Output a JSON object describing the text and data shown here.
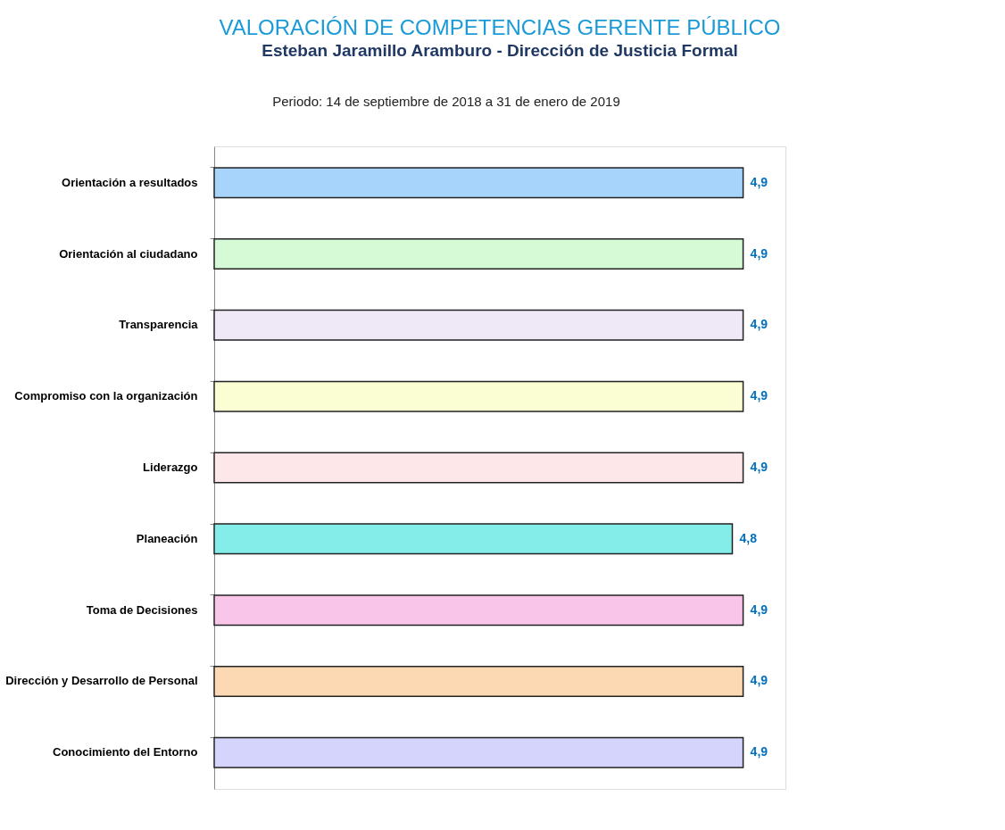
{
  "chart_data": {
    "type": "bar",
    "orientation": "horizontal",
    "title": "VALORACIÓN DE COMPETENCIAS GERENTE PÚBLICO",
    "subtitle": "Esteban Jaramillo Aramburo - Dirección de Justicia Formal",
    "annotations": [
      "Periodo: 14 de septiembre de 2018 a 31 de enero de 2019"
    ],
    "categories": [
      "Orientación a resultados",
      "Orientación al ciudadano",
      "Transparencia",
      "Compromiso con la organización",
      "Liderazgo",
      "Planeación",
      "Toma de Decisiones",
      "Dirección y Desarrollo de Personal",
      "Conocimiento del Entorno"
    ],
    "values": [
      4.9,
      4.9,
      4.9,
      4.9,
      4.9,
      4.8,
      4.9,
      4.9,
      4.9
    ],
    "value_labels": [
      "4,9",
      "4,9",
      "4,9",
      "4,9",
      "4,9",
      "4,8",
      "4,9",
      "4,9",
      "4,9"
    ],
    "colors": [
      "#a6d4fa",
      "#d6fad6",
      "#efe9f7",
      "#fbfdd3",
      "#fde7e8",
      "#84ece9",
      "#f9c6ea",
      "#fdd9b3",
      "#d4d4fc"
    ],
    "grid": false,
    "legend": false
  }
}
